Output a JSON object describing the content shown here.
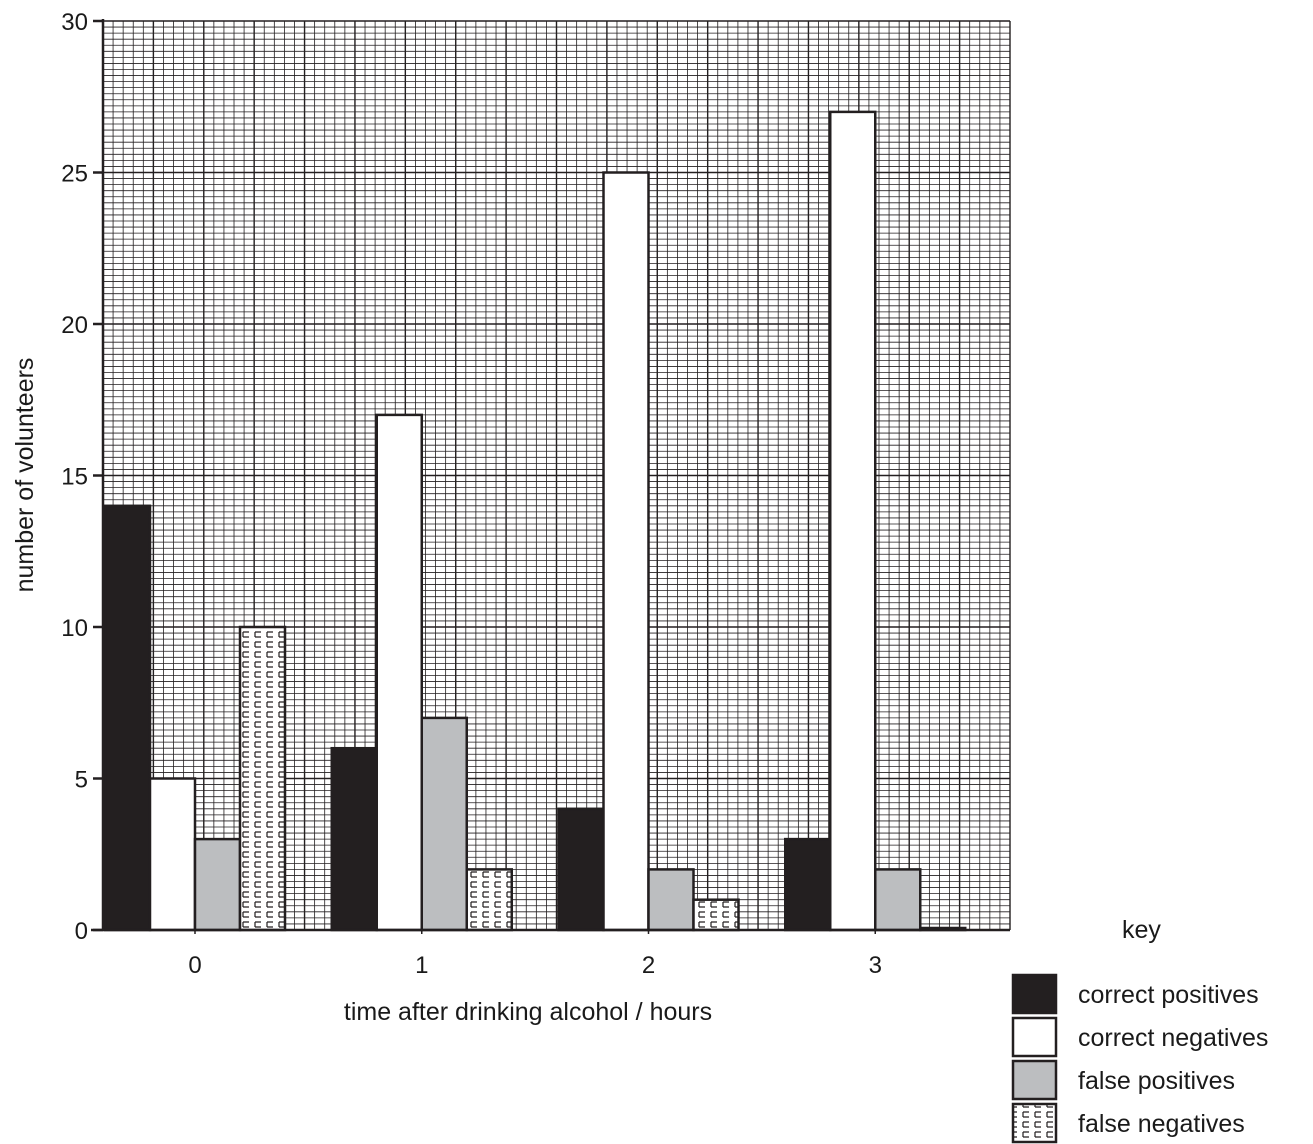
{
  "chart_data": {
    "type": "bar",
    "categories": [
      "0",
      "1",
      "2",
      "3"
    ],
    "series": [
      {
        "name": "correct positives",
        "values": [
          14,
          6,
          4,
          3
        ],
        "fill": "#231f20",
        "pattern": "solid"
      },
      {
        "name": "correct negatives",
        "values": [
          5,
          17,
          25,
          27
        ],
        "fill": "#ffffff",
        "pattern": "solid"
      },
      {
        "name": "false positives",
        "values": [
          3,
          7,
          2,
          2
        ],
        "fill": "#bcbec0",
        "pattern": "solid"
      },
      {
        "name": "false negatives",
        "values": [
          10,
          2,
          1,
          0
        ],
        "fill": "#ffffff",
        "pattern": "brick"
      }
    ],
    "xlabel": "time after drinking alcohol / hours",
    "ylabel": "number of volunteers",
    "ylim": [
      0,
      30
    ],
    "yticks": [
      "0",
      "5",
      "10",
      "15",
      "20",
      "25",
      "30"
    ],
    "grid": true,
    "legend": {
      "title": "key",
      "placement": "bottom-right"
    },
    "colors": {
      "grid": "#231f20",
      "axis": "#231f20",
      "background": "#ffffff"
    }
  }
}
